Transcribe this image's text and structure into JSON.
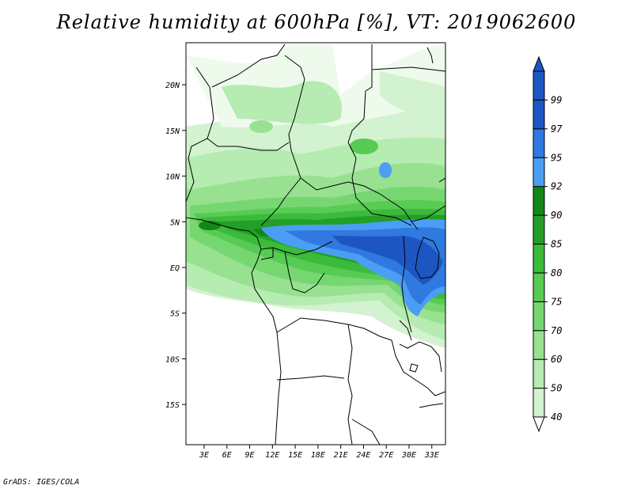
{
  "title": "Relative humidity at 600hPa [%], VT: 2019062600",
  "credit": "GrADS: IGES/COLA",
  "map": {
    "lat_ticks": [
      {
        "lat": 20,
        "label": "20N"
      },
      {
        "lat": 15,
        "label": "15N"
      },
      {
        "lat": 10,
        "label": "10N"
      },
      {
        "lat": 5,
        "label": "5N"
      },
      {
        "lat": 0,
        "label": "EQ"
      },
      {
        "lat": -5,
        "label": "5S"
      },
      {
        "lat": -10,
        "label": "10S"
      },
      {
        "lat": -15,
        "label": "15S"
      }
    ],
    "lon_ticks": [
      {
        "lon": 3,
        "label": "3E"
      },
      {
        "lon": 6,
        "label": "6E"
      },
      {
        "lon": 9,
        "label": "9E"
      },
      {
        "lon": 12,
        "label": "12E"
      },
      {
        "lon": 15,
        "label": "15E"
      },
      {
        "lon": 18,
        "label": "18E"
      },
      {
        "lon": 21,
        "label": "21E"
      },
      {
        "lon": 24,
        "label": "24E"
      },
      {
        "lon": 27,
        "label": "27E"
      },
      {
        "lon": 30,
        "label": "30E"
      },
      {
        "lon": 33,
        "label": "33E"
      }
    ]
  },
  "colorbar": {
    "levels": [
      {
        "label": "40",
        "color": "#eefaec"
      },
      {
        "label": "50",
        "color": "#d3f2cf"
      },
      {
        "label": "60",
        "color": "#b6ebb1"
      },
      {
        "label": "70",
        "color": "#97e191"
      },
      {
        "label": "75",
        "color": "#76d771"
      },
      {
        "label": "80",
        "color": "#57cb54"
      },
      {
        "label": "85",
        "color": "#3cbb3b"
      },
      {
        "label": "90",
        "color": "#239f27"
      },
      {
        "label": "92",
        "color": "#128717"
      },
      {
        "label": "95",
        "color": "#4b9ef3"
      },
      {
        "label": "97",
        "color": "#2f79e0"
      },
      {
        "label": "99",
        "color": "#1d56c2"
      }
    ],
    "below_color": "#ffffff",
    "above_color": "#1d56c2"
  }
}
